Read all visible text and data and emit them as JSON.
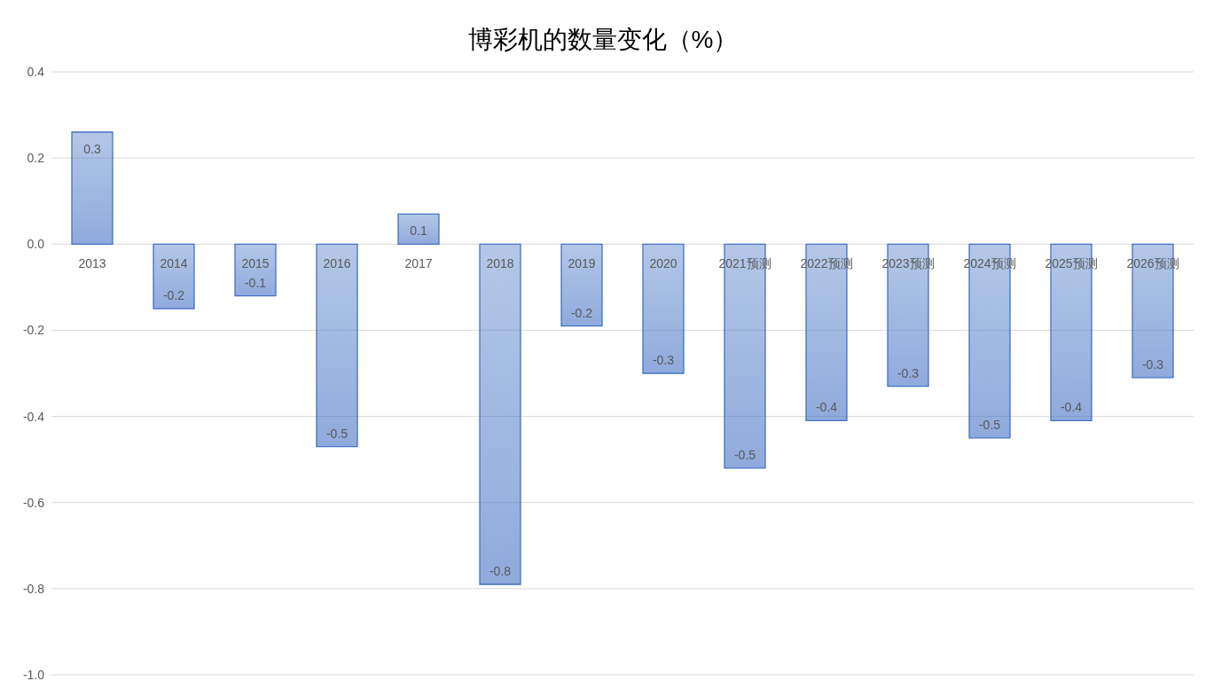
{
  "chart_data": {
    "type": "bar",
    "title": "博彩机的数量变化（%）",
    "categories": [
      "2013",
      "2014",
      "2015",
      "2016",
      "2017",
      "2018",
      "2019",
      "2020",
      "2021预测",
      "2022预测",
      "2023预测",
      "2024预测",
      "2025预测",
      "2026预测"
    ],
    "values": [
      0.26,
      -0.15,
      -0.12,
      -0.47,
      0.07,
      -0.79,
      -0.19,
      -0.3,
      -0.52,
      -0.41,
      -0.33,
      -0.45,
      -0.41,
      -0.31
    ],
    "value_labels": [
      "0.3",
      "-0.2",
      "-0.1",
      "-0.5",
      "0.1",
      "-0.8",
      "-0.2",
      "-0.3",
      "-0.5",
      "-0.4",
      "-0.3",
      "-0.5",
      "-0.4",
      "-0.3"
    ],
    "color": "#4472c4",
    "ylim": [
      -1.0,
      0.4
    ],
    "yticks": [
      {
        "value": -1.0,
        "label": "-1.0"
      },
      {
        "value": -0.8,
        "label": "-0.8"
      },
      {
        "value": -0.6,
        "label": "-0.6"
      },
      {
        "value": -0.4,
        "label": "-0.4"
      },
      {
        "value": -0.2,
        "label": "-0.2"
      },
      {
        "value": 0,
        "label": "0.0"
      },
      {
        "value": 0.2,
        "label": "0.2"
      },
      {
        "value": 0.4,
        "label": "0.4"
      }
    ],
    "grid": "y",
    "legend": false
  }
}
